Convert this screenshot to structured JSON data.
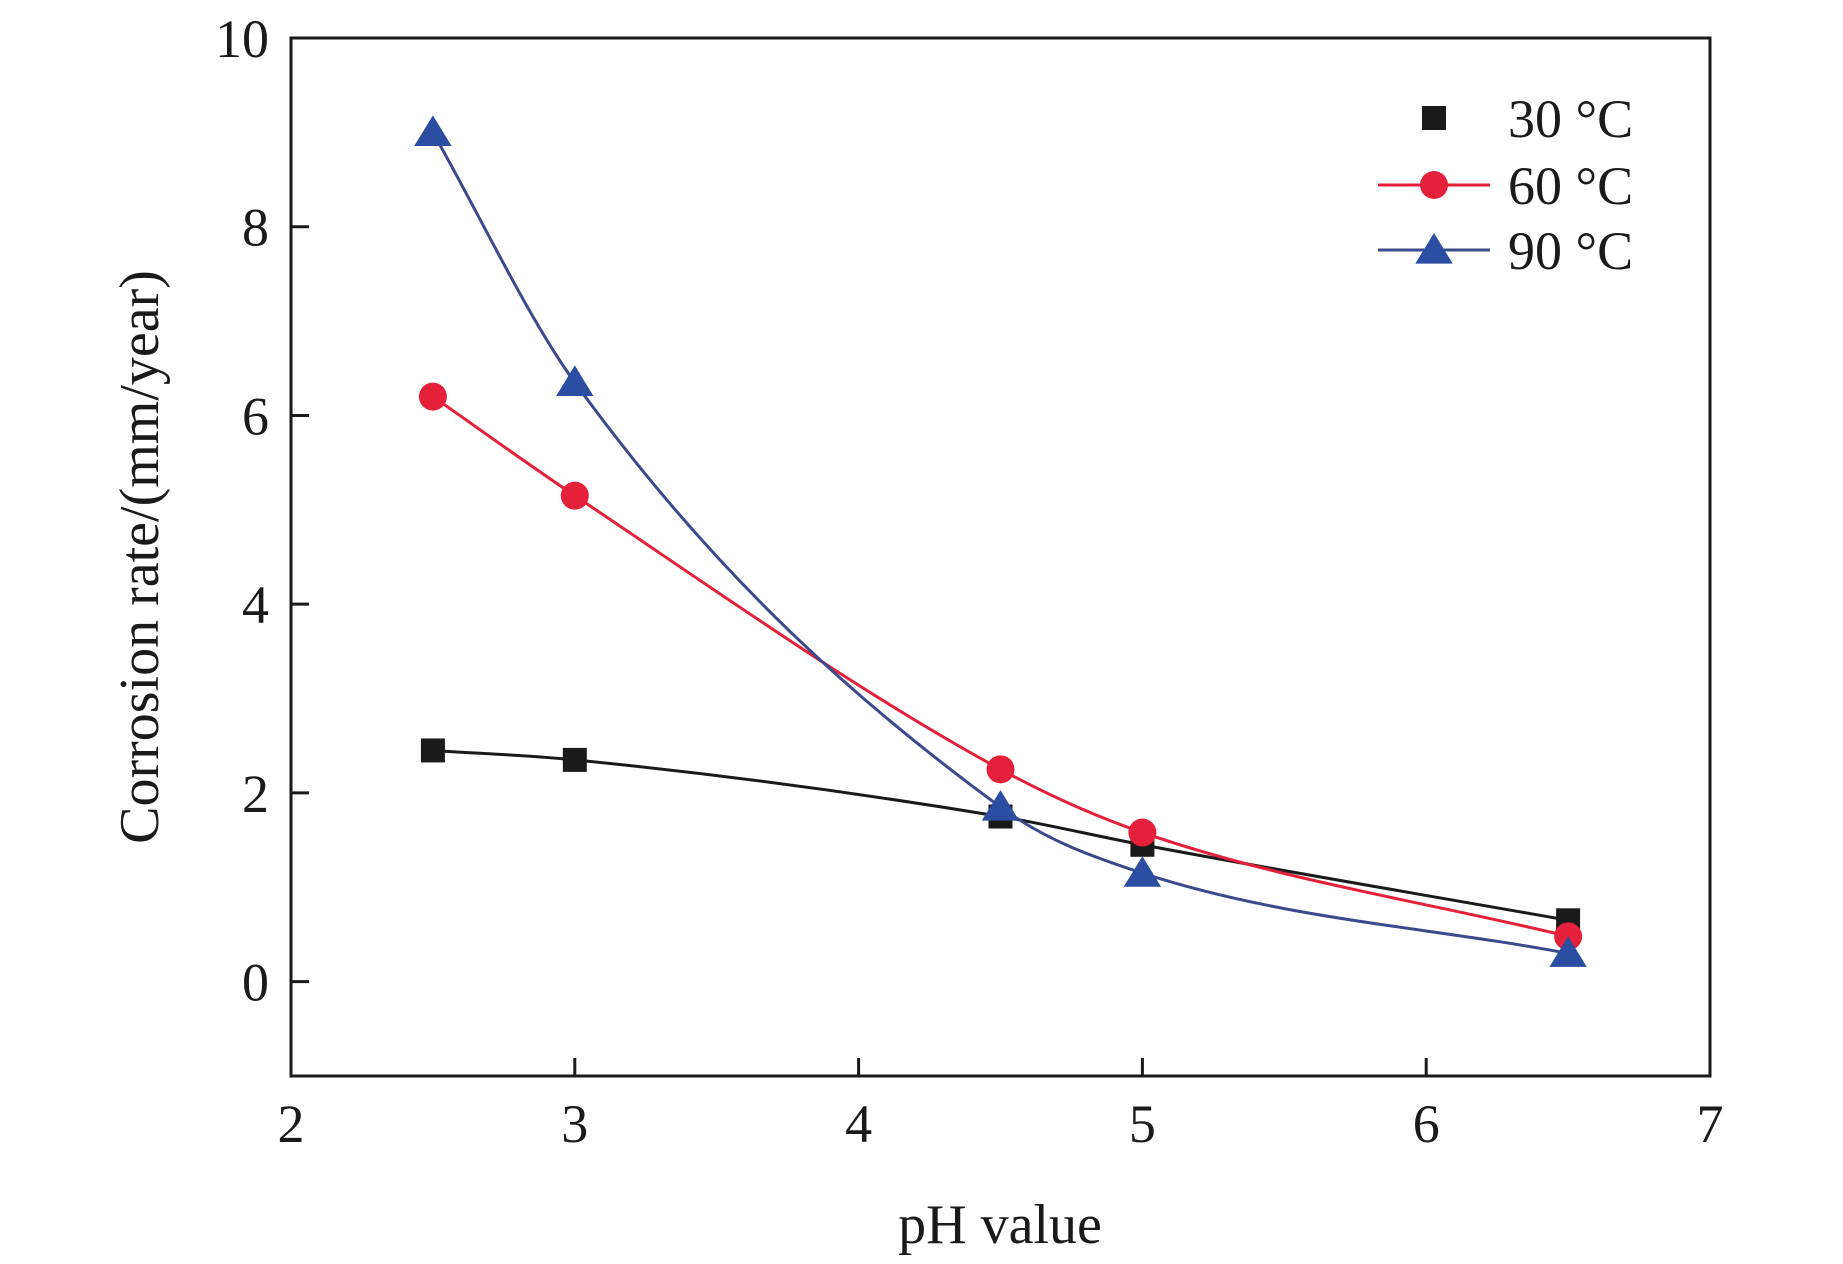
{
  "chart_data": {
    "type": "line",
    "title": "",
    "xlabel": "pH value",
    "ylabel": "Corrosion rate/(mm/year)",
    "xlim": [
      2,
      7
    ],
    "ylim": [
      -1,
      10
    ],
    "xticks": [
      2,
      3,
      4,
      5,
      6,
      7
    ],
    "yticks": [
      0,
      2,
      4,
      6,
      8,
      10
    ],
    "xtick_labels": [
      "2",
      "3",
      "4",
      "5",
      "6",
      "7"
    ],
    "ytick_labels": [
      "0",
      "2",
      "4",
      "6",
      "8",
      "10"
    ],
    "grid": false,
    "legend_position": "top-right",
    "series": [
      {
        "name": "30 °C",
        "color": "#1a1a1a",
        "marker": "square",
        "x": [
          2.5,
          3.0,
          4.5,
          5.0,
          6.5
        ],
        "y": [
          2.45,
          2.35,
          1.75,
          1.45,
          0.65
        ]
      },
      {
        "name": "60 °C",
        "color": "#e5203a",
        "marker": "circle",
        "x": [
          2.5,
          3.0,
          4.5,
          5.0,
          6.5
        ],
        "y": [
          6.2,
          5.15,
          2.25,
          1.58,
          0.48
        ]
      },
      {
        "name": "90 °C",
        "color": "#2b4ea2",
        "marker": "triangle",
        "line_color": "#3b4a8c",
        "x": [
          2.5,
          3.0,
          4.5,
          5.0,
          6.5
        ],
        "y": [
          9.0,
          6.35,
          1.85,
          1.15,
          0.3
        ]
      }
    ]
  }
}
